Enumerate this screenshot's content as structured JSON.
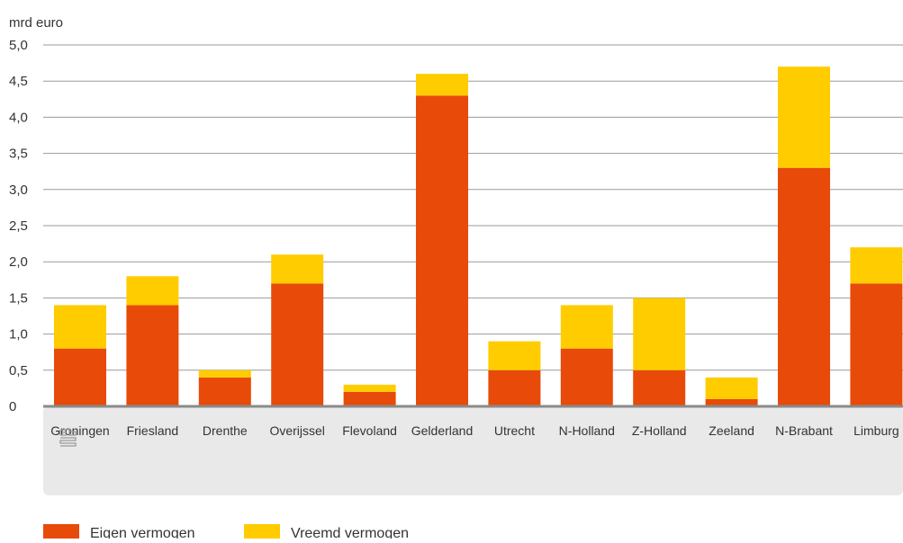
{
  "chart_data": {
    "type": "bar",
    "stacked": true,
    "ylabel": "mrd euro",
    "ylim": [
      0,
      5.0
    ],
    "yticks": [
      "0",
      "0,5",
      "1,0",
      "1,5",
      "2,0",
      "2,5",
      "3,0",
      "3,5",
      "4,0",
      "4,5",
      "5,0"
    ],
    "grid": true,
    "legend_position": "bottom-left",
    "categories": [
      "Groningen",
      "Friesland",
      "Drenthe",
      "Overijssel",
      "Flevoland",
      "Gelderland",
      "Utrecht",
      "N-Holland",
      "Z-Holland",
      "Zeeland",
      "N-Brabant",
      "Limburg"
    ],
    "series": [
      {
        "name": "Eigen vermogen",
        "color": "#e84a09",
        "values": [
          0.8,
          1.4,
          0.4,
          1.7,
          0.2,
          4.3,
          0.5,
          0.8,
          0.5,
          0.1,
          3.3,
          1.7
        ]
      },
      {
        "name": "Vreemd vermogen",
        "color": "#ffcc00",
        "values": [
          0.6,
          0.4,
          0.1,
          0.4,
          0.1,
          0.3,
          0.4,
          0.6,
          1.0,
          0.3,
          1.4,
          0.5
        ]
      }
    ],
    "logo_icon": "cbs-logo-icon"
  }
}
